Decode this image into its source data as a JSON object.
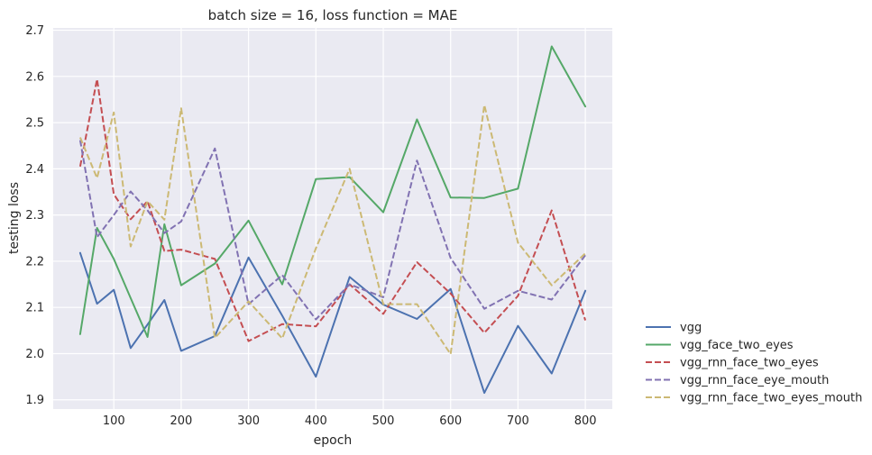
{
  "chart_data": {
    "type": "line",
    "title": "batch size = 16, loss function = MAE",
    "xlabel": "epoch",
    "ylabel": "testing loss",
    "xlim": [
      10,
      840
    ],
    "ylim": [
      1.88,
      2.705
    ],
    "xticks": [
      100,
      200,
      300,
      400,
      500,
      600,
      700,
      800
    ],
    "yticks": [
      1.9,
      2.0,
      2.1,
      2.2,
      2.3,
      2.4,
      2.5,
      2.6,
      2.7
    ],
    "grid": true,
    "legend_position": "right-bottom",
    "x": [
      50,
      75,
      100,
      125,
      150,
      175,
      200,
      250,
      300,
      350,
      400,
      450,
      500,
      550,
      600,
      650,
      700,
      750,
      800
    ],
    "series": [
      {
        "name": "vgg",
        "color": "#4c72b0",
        "dash": "solid",
        "values": [
          2.218,
          2.108,
          2.138,
          2.012,
          2.063,
          2.116,
          2.006,
          2.038,
          2.208,
          2.082,
          1.95,
          2.166,
          2.106,
          2.075,
          2.14,
          1.915,
          2.06,
          1.957,
          2.136
        ]
      },
      {
        "name": "vgg_face_two_eyes",
        "color": "#55a868",
        "dash": "solid",
        "values": [
          2.042,
          2.272,
          2.205,
          2.12,
          2.036,
          2.28,
          2.148,
          2.195,
          2.288,
          2.15,
          2.378,
          2.382,
          2.306,
          2.507,
          2.338,
          2.337,
          2.357,
          2.665,
          2.535
        ]
      },
      {
        "name": "vgg_rnn_face_two_eyes",
        "color": "#c44e52",
        "dash": "dashed",
        "values": [
          2.405,
          2.594,
          2.345,
          2.291,
          2.33,
          2.222,
          2.225,
          2.205,
          2.027,
          2.064,
          2.059,
          2.15,
          2.086,
          2.198,
          2.13,
          2.045,
          2.125,
          2.31,
          2.072
        ]
      },
      {
        "name": "vgg_rnn_face_eye_mouth",
        "color": "#8172b2",
        "dash": "dashed",
        "values": [
          2.462,
          2.252,
          2.3,
          2.351,
          2.31,
          2.261,
          2.286,
          2.444,
          2.107,
          2.17,
          2.074,
          2.15,
          2.122,
          2.418,
          2.207,
          2.097,
          2.136,
          2.117,
          2.213
        ]
      },
      {
        "name": "vgg_rnn_face_two_eyes_mouth",
        "color": "#ccb974",
        "dash": "dashed",
        "values": [
          2.468,
          2.38,
          2.522,
          2.232,
          2.33,
          2.29,
          2.531,
          2.034,
          2.113,
          2.033,
          2.228,
          2.4,
          2.107,
          2.107,
          1.999,
          2.538,
          2.24,
          2.148,
          2.217
        ]
      }
    ]
  }
}
